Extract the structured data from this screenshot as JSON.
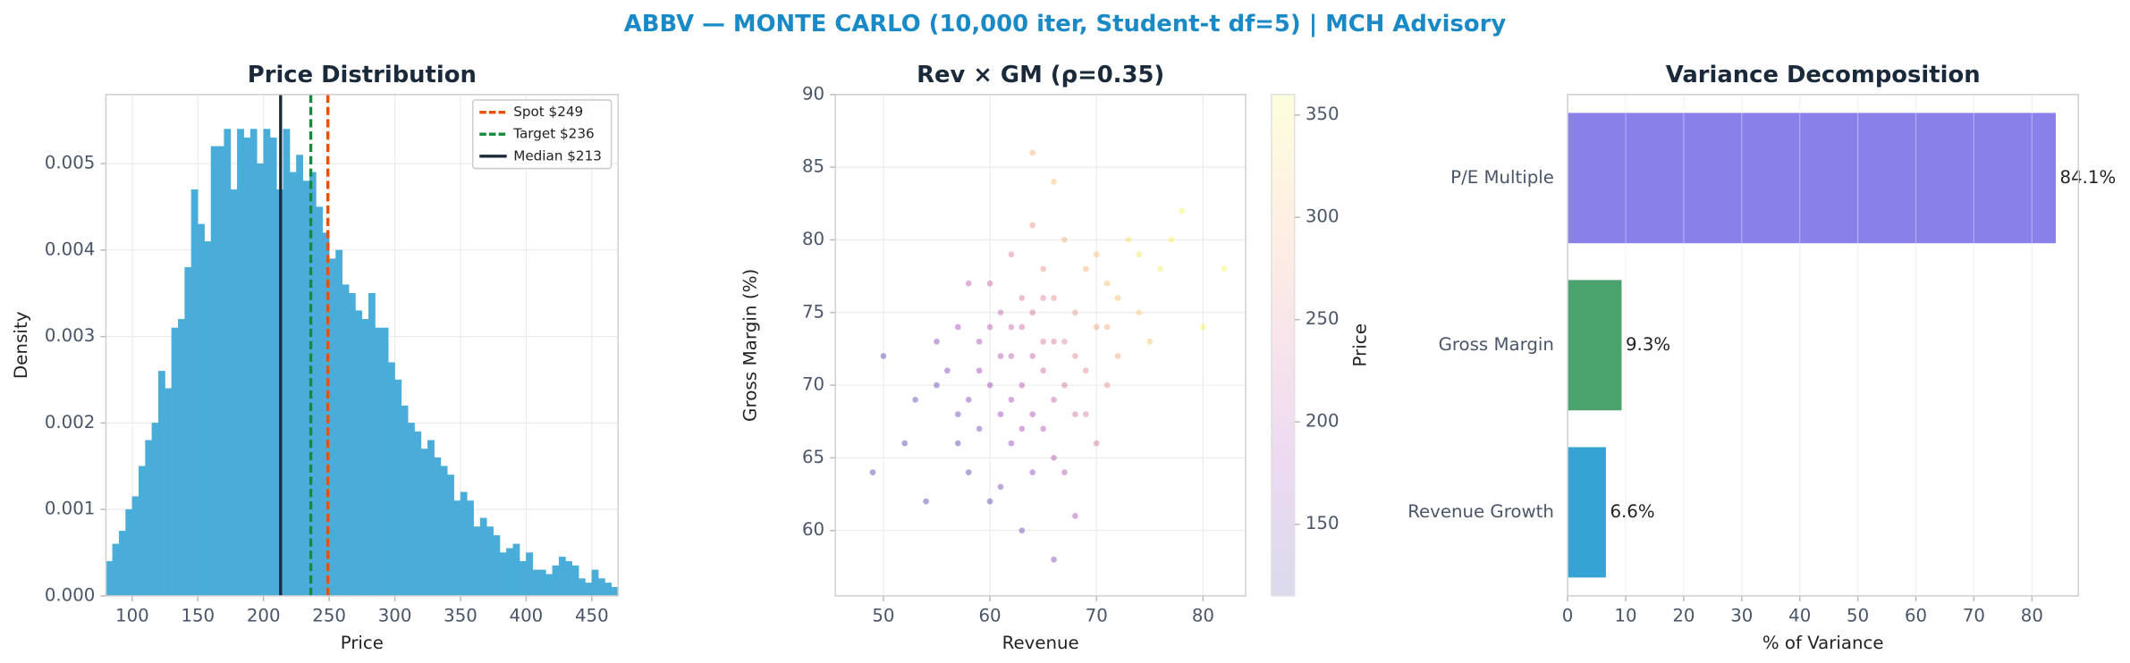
{
  "title": "ABBV — MONTE CARLO (10,000 iter, Student-t df=5) | MCH Advisory",
  "chart_data": [
    {
      "type": "histogram",
      "title": "Price Distribution",
      "x_label": "Price",
      "y_label": "Density",
      "color": "#4aadd9",
      "bins": [
        80,
        85,
        90,
        95,
        100,
        105,
        110,
        115,
        120,
        125,
        130,
        135,
        140,
        145,
        150,
        155,
        160,
        165,
        170,
        175,
        180,
        185,
        190,
        195,
        200,
        205,
        210,
        215,
        220,
        225,
        230,
        235,
        240,
        245,
        250,
        255,
        260,
        265,
        270,
        275,
        280,
        285,
        290,
        295,
        300,
        305,
        310,
        315,
        320,
        325,
        330,
        335,
        340,
        345,
        350,
        355,
        360,
        365,
        370,
        375,
        380,
        385,
        390,
        395,
        400,
        405,
        410,
        415,
        420,
        425,
        430,
        435,
        440,
        445,
        450,
        455,
        460,
        465,
        470
      ],
      "values": [
        0.0004,
        0.0006,
        0.00075,
        0.001,
        0.00115,
        0.0015,
        0.0018,
        0.002,
        0.0026,
        0.0024,
        0.0031,
        0.0032,
        0.0038,
        0.0047,
        0.0043,
        0.0041,
        0.0052,
        0.0052,
        0.0054,
        0.0047,
        0.0054,
        0.0053,
        0.0054,
        0.005,
        0.0054,
        0.0053,
        0.0047,
        0.0054,
        0.0049,
        0.0051,
        0.0048,
        0.0049,
        0.0045,
        0.0042,
        0.0039,
        0.004,
        0.0036,
        0.0035,
        0.0033,
        0.0032,
        0.0035,
        0.0031,
        0.0031,
        0.0027,
        0.0025,
        0.0022,
        0.002,
        0.0019,
        0.0017,
        0.0018,
        0.0016,
        0.0015,
        0.0014,
        0.0011,
        0.0012,
        0.0011,
        0.0008,
        0.0009,
        0.0008,
        0.0007,
        0.0005,
        0.00055,
        0.0006,
        0.0004,
        0.0005,
        0.0003,
        0.0003,
        0.00025,
        0.00035,
        0.00045,
        0.0004,
        0.00035,
        0.0002,
        0.00015,
        0.0003,
        0.0002,
        0.00015,
        0.0001
      ],
      "xlim": [
        80,
        470
      ],
      "xticks": [
        100,
        150,
        200,
        250,
        300,
        350,
        400,
        450
      ],
      "ylim": [
        0,
        0.0058
      ],
      "yticks": [
        {
          "value": 0,
          "label": "0.000"
        },
        {
          "value": 0.001,
          "label": "0.001"
        },
        {
          "value": 0.002,
          "label": "0.002"
        },
        {
          "value": 0.003,
          "label": "0.003"
        },
        {
          "value": 0.004,
          "label": "0.004"
        },
        {
          "value": 0.005,
          "label": "0.005"
        }
      ],
      "grid": true,
      "legend": "upper right",
      "vlines": [
        {
          "name": "Spot $249",
          "value": 249,
          "color": "#e8500e",
          "dashed": true
        },
        {
          "name": "Target $236",
          "value": 236,
          "color": "#148a3c",
          "dashed": true
        },
        {
          "name": "Median $213",
          "value": 213,
          "color": "#1a2a3a",
          "dashed": false
        }
      ]
    },
    {
      "type": "scatter",
      "title": "Rev × GM (ρ=0.35)",
      "x_label": "Revenue",
      "y_label": "Gross Margin (%)",
      "x": [
        64,
        60,
        68,
        57,
        71,
        63,
        66,
        59,
        62,
        69,
        65,
        55,
        73,
        61,
        67,
        58,
        64,
        70,
        63,
        66,
        52,
        76,
        60,
        68,
        62,
        65,
        57,
        72,
        59,
        67,
        63,
        70,
        54,
        61,
        66,
        74,
        64,
        58,
        69,
        62,
        65,
        71,
        60,
        56,
        67,
        78,
        63,
        66,
        49,
        80,
        64,
        61,
        68,
        59,
        72,
        65,
        62,
        57,
        70,
        64,
        53,
        75,
        66,
        60,
        68,
        63,
        67,
        58,
        71,
        61,
        74,
        65,
        55,
        69,
        62,
        66,
        77,
        50,
        64,
        82
      ],
      "y": [
        72,
        70,
        75,
        68,
        77,
        74,
        69,
        73,
        66,
        71,
        78,
        70,
        80,
        75,
        73,
        64,
        68,
        74,
        70,
        76,
        66,
        78,
        62,
        68,
        79,
        71,
        74,
        72,
        67,
        80,
        76,
        66,
        62,
        72,
        73,
        75,
        64,
        77,
        78,
        69,
        67,
        70,
        74,
        71,
        64,
        82,
        60,
        84,
        64,
        74,
        75,
        68,
        72,
        71,
        76,
        73,
        72,
        66,
        79,
        81,
        69,
        73,
        65,
        77,
        61,
        67,
        70,
        69,
        74,
        63,
        79,
        76,
        73,
        68,
        74,
        58,
        80,
        72,
        86,
        78
      ],
      "c": [
        213,
        177,
        271,
        141,
        307,
        225,
        219,
        187,
        169,
        255,
        265,
        137,
        341,
        215,
        251,
        125,
        189,
        281,
        201,
        261,
        122,
        350,
        129,
        229,
        247,
        223,
        177,
        285,
        151,
        293,
        237,
        233,
        120,
        197,
        243,
        319,
        165,
        203,
        297,
        187,
        199,
        265,
        201,
        151,
        197,
        355,
        141,
        309,
        120,
        355,
        231,
        173,
        253,
        175,
        309,
        235,
        205,
        129,
        311,
        267,
        135,
        315,
        195,
        219,
        187,
        183,
        233,
        155,
        289,
        143,
        343,
        247,
        155,
        243,
        217,
        153,
        350,
        128,
        297,
        355
      ],
      "xlim": [
        45.5,
        84
      ],
      "xticks": [
        50,
        60,
        70,
        80
      ],
      "ylim": [
        55.5,
        90
      ],
      "yticks": [
        60,
        65,
        70,
        75,
        80,
        85,
        90
      ],
      "grid": true,
      "colorbar": {
        "label": "Price",
        "colormap": "plasma",
        "lim": [
          115,
          360
        ],
        "ticks": [
          150,
          200,
          250,
          300,
          350
        ]
      }
    },
    {
      "type": "bar",
      "orientation": "horizontal",
      "title": "Variance Decomposition",
      "x_label": "% of Variance",
      "categories": [
        "Revenue Growth",
        "Gross Margin",
        "P/E Multiple"
      ],
      "values": [
        6.6,
        9.3,
        84.1
      ],
      "value_labels": [
        "6.6%",
        "9.3%",
        "84.1%"
      ],
      "colors": [
        "#35a3d4",
        "#4aa36c",
        "#8a80ea"
      ],
      "xlim": [
        0,
        88
      ],
      "xticks": [
        0,
        10,
        20,
        30,
        40,
        50,
        60,
        70,
        80
      ],
      "grid": true
    }
  ]
}
